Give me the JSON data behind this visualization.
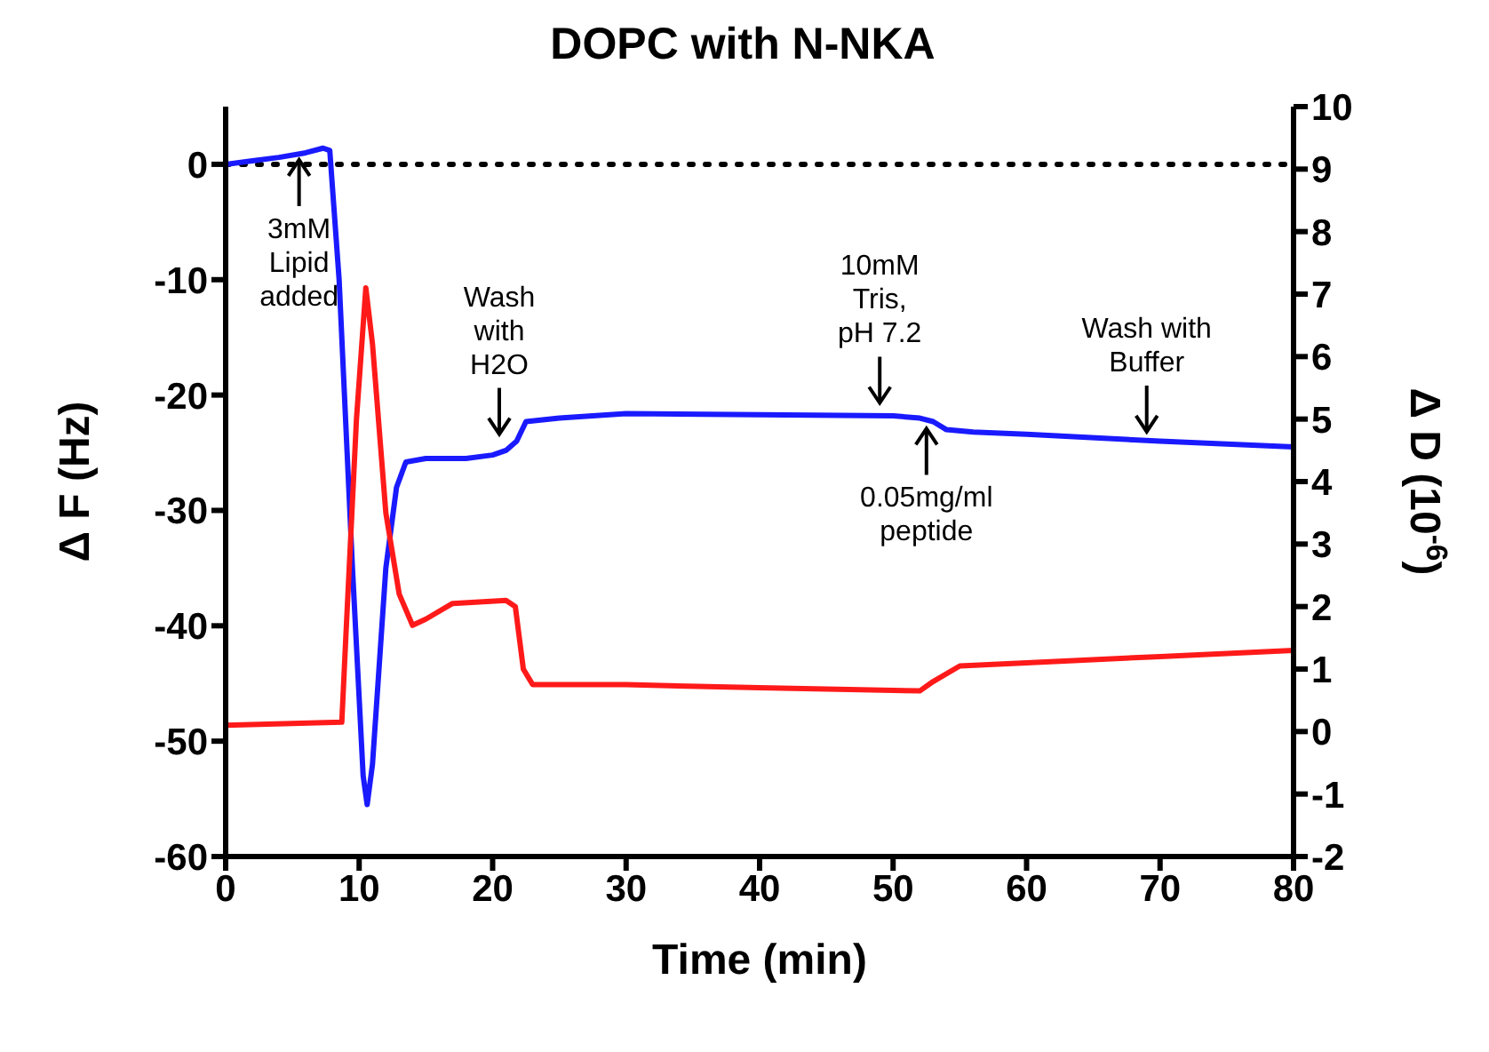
{
  "chart_data": {
    "type": "line",
    "title": "DOPC with N-NKA",
    "xlabel": "Time (min)",
    "ylabel": "Δ F (Hz)",
    "y2label": "Δ D (10$^{-6}$)",
    "xlim": [
      0,
      80
    ],
    "xticks": [
      0,
      10,
      20,
      30,
      40,
      50,
      60,
      70,
      80
    ],
    "ylim": [
      -60,
      5
    ],
    "yticks": [
      -60,
      -50,
      -40,
      -30,
      -20,
      -10,
      0
    ],
    "y2lim": [
      -2,
      10
    ],
    "y2ticks": [
      -2,
      -1,
      0,
      1,
      2,
      3,
      4,
      5,
      6,
      7,
      8,
      9,
      10
    ],
    "marker": "none",
    "line_style": "solid",
    "ref_lines": [
      {
        "axis": "y",
        "value": 0,
        "color": "#000000",
        "line_style": "dotted"
      }
    ],
    "series": [
      {
        "color": "#1a1aff",
        "axis": "y",
        "x": [
          0,
          2,
          4,
          6,
          7.3,
          7.8,
          8.5,
          9.5,
          10.3,
          10.6,
          11,
          12,
          12.8,
          13.5,
          15,
          18,
          20,
          21,
          21.8,
          22.5,
          25,
          30,
          40,
          50,
          52,
          53,
          54,
          56,
          60,
          70,
          80
        ],
        "values": [
          0,
          0.3,
          0.6,
          1,
          1.4,
          1.2,
          -10,
          -35,
          -53,
          -55.5,
          -52,
          -35,
          -28,
          -25.8,
          -25.5,
          -25.5,
          -25.2,
          -24.8,
          -24,
          -22.3,
          -22,
          -21.6,
          -21.7,
          -21.8,
          -22,
          -22.3,
          -23,
          -23.2,
          -23.4,
          -24,
          -24.5
        ]
      },
      {
        "color": "#ff1a1a",
        "axis": "y2",
        "x": [
          0,
          8.7,
          9,
          9.8,
          10.5,
          11,
          12,
          13,
          14,
          15,
          17,
          21,
          21.7,
          22.3,
          23,
          30,
          40,
          52,
          53,
          55,
          60,
          70,
          80
        ],
        "values": [
          0.1,
          0.15,
          1.5,
          5,
          7.1,
          6.2,
          3.5,
          2.2,
          1.7,
          1.8,
          2.05,
          2.1,
          2,
          1,
          0.75,
          0.75,
          0.7,
          0.65,
          0.8,
          1.05,
          1.1,
          1.2,
          1.3
        ]
      }
    ],
    "annotations": [
      {
        "text": "3mM Lipid added",
        "x": 5.5,
        "y": 1
      },
      {
        "text": "Wash with H2O",
        "x": 20.5,
        "y": -24
      },
      {
        "text": "10mM Tris, pH 7.2",
        "x": 49,
        "y": -21.3
      },
      {
        "text": "0.05mg/ml peptide",
        "x": 52.5,
        "y": -22.3
      },
      {
        "text": "Wash with Buffer",
        "x": 69,
        "y": -23.8
      }
    ]
  }
}
